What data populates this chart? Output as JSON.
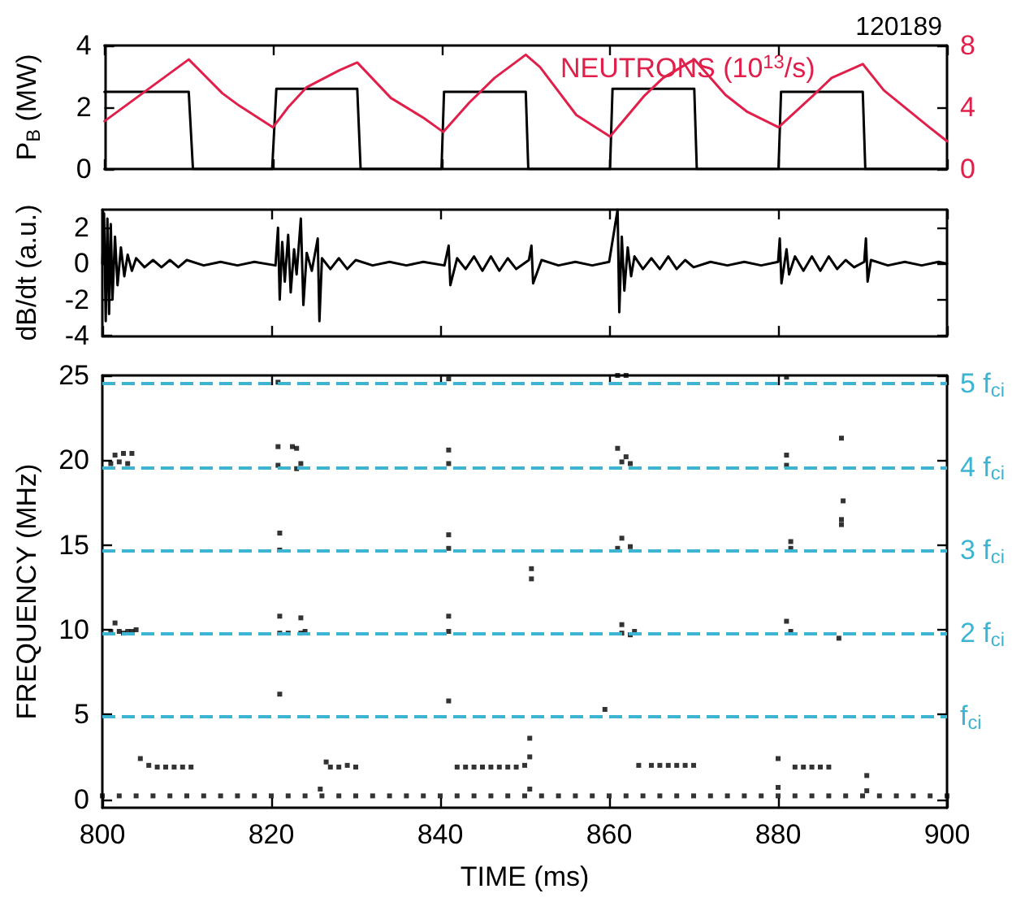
{
  "chart_data": [
    {
      "type": "line",
      "title": "120189",
      "ylabel": "P$_{B}$ (MW)",
      "y2label": "NEUTRONS (10$^{13}$/s)",
      "xlim": [
        800,
        900
      ],
      "xticks": [
        800,
        820,
        840,
        860,
        880,
        900
      ],
      "ylim": [
        0,
        4
      ],
      "yticks": [
        0,
        2,
        4
      ],
      "y2lim": [
        0,
        8
      ],
      "y2ticks": [
        0,
        4,
        8
      ],
      "tick_labels": "y",
      "marker": "none",
      "line_style": "solid",
      "series": [
        {
          "color": "#000000",
          "x": [
            800,
            810,
            810.5,
            819.9,
            820.4,
            830,
            830.4,
            840,
            840.3,
            850,
            850.3,
            860,
            860.3,
            870,
            870.3,
            880,
            880.3,
            890,
            890.3,
            900
          ],
          "values": [
            2.5,
            2.5,
            0,
            0,
            2.6,
            2.6,
            0,
            0,
            2.5,
            2.5,
            0,
            0,
            2.6,
            2.6,
            0,
            0,
            2.5,
            2.5,
            0,
            0
          ]
        },
        {
          "color": "#e0204a",
          "axis": "y2",
          "x": [
            800,
            810,
            814,
            816,
            820,
            821.8,
            824,
            827.9,
            830,
            834,
            837.9,
            840.2,
            843.3,
            846.3,
            850,
            851.7,
            856,
            860,
            864,
            866.3,
            870,
            873.7,
            876.3,
            880,
            884,
            886.3,
            890,
            892.5,
            895.2,
            897.9,
            900
          ],
          "values": [
            3.1,
            7.1,
            4.9,
            4.1,
            2.7,
            4.0,
            5.3,
            6.4,
            6.9,
            4.6,
            3.3,
            2.4,
            4.3,
            5.9,
            7.4,
            6.6,
            3.5,
            2.1,
            4.7,
            5.9,
            7.1,
            4.8,
            3.7,
            2.7,
            4.7,
            5.9,
            6.8,
            5.1,
            3.9,
            2.7,
            1.8
          ]
        }
      ]
    },
    {
      "type": "line",
      "ylabel": "dB/dt (a.u.)",
      "xlim": [
        800,
        900
      ],
      "xticks": [
        800,
        820,
        840,
        860,
        880,
        900
      ],
      "ylim": [
        -4,
        3
      ],
      "yticks": [
        -4,
        -2,
        0,
        2
      ],
      "tick_labels": "y",
      "marker": "none",
      "series": [
        {
          "color": "#000000",
          "x": [
            800,
            800.2,
            800.4,
            800.6,
            800.8,
            801,
            801.2,
            801.5,
            801.8,
            802.2,
            802.6,
            803,
            803.5,
            804,
            805,
            806,
            807,
            808,
            809,
            810,
            812,
            814,
            816,
            818,
            820.5,
            820.8,
            821,
            821.3,
            821.6,
            822,
            822.3,
            822.7,
            823,
            823.5,
            823.8,
            824.2,
            824.8,
            825.5,
            825.7,
            826,
            827,
            828,
            829,
            830,
            832,
            834,
            836,
            838,
            840.5,
            841,
            841.2,
            842,
            843,
            844,
            845,
            846,
            847,
            848,
            849,
            850.5,
            850.8,
            851,
            852,
            854,
            856,
            858,
            860,
            861,
            861.2,
            861.5,
            861.8,
            862.2,
            862.6,
            863,
            864,
            865,
            866,
            867,
            868,
            869,
            870,
            872,
            874,
            876,
            878,
            880,
            880.2,
            880.4,
            881,
            881.3,
            882,
            883,
            884,
            885,
            886,
            887,
            888,
            889,
            890.2,
            890.4,
            890.6,
            891,
            893,
            895,
            897,
            899,
            900
          ],
          "values": [
            0,
            2.8,
            -3.2,
            2.5,
            -2.8,
            2.2,
            -2.0,
            1.5,
            -1.2,
            0.9,
            -0.7,
            0.5,
            -0.4,
            0.3,
            -0.2,
            0.2,
            -0.2,
            0.2,
            -0.2,
            0.2,
            -0.1,
            0.1,
            -0.1,
            0.1,
            -0.1,
            2.0,
            -2.0,
            1.2,
            -1.0,
            1.6,
            -1.6,
            0.8,
            -0.6,
            2.5,
            -2.3,
            0.6,
            -0.4,
            1.4,
            -3.2,
            0.3,
            -0.3,
            0.3,
            -0.3,
            0.2,
            -0.1,
            0.1,
            -0.1,
            0.1,
            -0.1,
            1.0,
            -1.2,
            0.3,
            -0.3,
            0.4,
            -0.4,
            0.4,
            -0.4,
            0.3,
            -0.3,
            0.2,
            1.0,
            -1.1,
            0.2,
            -0.1,
            0.1,
            -0.1,
            0.1,
            3.0,
            -2.7,
            1.5,
            -1.5,
            0.9,
            -0.7,
            0.4,
            -0.3,
            0.3,
            -0.3,
            0.4,
            -0.3,
            0.2,
            -0.2,
            0.1,
            -0.1,
            0.1,
            -0.1,
            0.1,
            1.4,
            -1.1,
            0.8,
            -0.6,
            0.4,
            -0.4,
            0.4,
            -0.4,
            0.4,
            -0.3,
            0.2,
            -0.2,
            0.1,
            1.4,
            -1.0,
            0.2,
            -0.1,
            0.1,
            -0.1,
            0.1,
            0
          ]
        }
      ]
    },
    {
      "type": "scatter",
      "xlabel": "TIME (ms)",
      "ylabel": "FREQUENCY (MHz)",
      "xlim": [
        800,
        900
      ],
      "xticks": [
        800,
        820,
        840,
        860,
        880,
        900
      ],
      "ylim": [
        -0.5,
        25
      ],
      "yticks": [
        0,
        5,
        10,
        15,
        20,
        25
      ],
      "marker": "square",
      "ref_lines": [
        {
          "axis": "y",
          "value": 4.9,
          "label": "f$_{ci}$",
          "color": "#3cb4d2",
          "line_style": "dashed"
        },
        {
          "axis": "y",
          "value": 9.8,
          "label": "2 f$_{ci}$",
          "color": "#3cb4d2",
          "line_style": "dashed"
        },
        {
          "axis": "y",
          "value": 14.7,
          "label": "3 f$_{ci}$",
          "color": "#3cb4d2",
          "line_style": "dashed"
        },
        {
          "axis": "y",
          "value": 19.6,
          "label": "4 f$_{ci}$",
          "color": "#3cb4d2",
          "line_style": "dashed"
        },
        {
          "axis": "y",
          "value": 24.5,
          "label": "5 f$_{ci}$",
          "color": "#3cb4d2",
          "line_style": "dashed"
        }
      ],
      "series": [
        {
          "color": "#000000",
          "x": [
            800,
            802,
            804,
            806,
            808,
            810,
            812,
            814,
            816,
            818,
            820,
            822,
            824,
            826,
            828,
            830,
            832,
            834,
            836,
            838,
            840,
            842,
            844,
            846,
            848,
            850,
            852,
            854,
            856,
            858,
            860,
            862,
            864,
            866,
            868,
            870,
            872,
            874,
            876,
            878,
            880,
            882,
            884,
            886,
            888,
            890,
            892,
            894,
            896,
            898,
            900,
            801,
            801.5,
            802,
            802.5,
            803,
            803.5,
            804,
            801,
            801.5,
            802,
            802.5,
            803,
            803.5,
            804.5,
            805.5,
            806.5,
            807.5,
            808.5,
            809.5,
            810.5,
            820.8,
            820.8,
            820.8,
            821,
            821,
            821,
            821,
            821,
            822,
            822.5,
            823,
            823,
            823.5,
            823.5,
            823.5,
            824,
            825.8,
            826.5,
            827,
            828,
            829,
            830,
            841,
            841,
            841,
            841,
            841,
            841,
            841,
            841,
            842,
            843,
            844,
            845,
            846,
            847,
            848,
            849,
            850,
            850.6,
            850.6,
            850.6,
            850.8,
            850.8,
            859.5,
            861,
            862,
            861,
            862,
            861.5,
            862.5,
            861.5,
            861,
            862.5,
            861.5,
            861.5,
            862.5,
            863,
            863.5,
            865,
            866,
            867,
            868,
            869,
            870,
            880,
            880,
            881,
            881,
            881,
            881.5,
            881.5,
            881,
            881.5,
            882,
            883,
            884,
            885,
            886,
            887.2,
            887.5,
            887.7,
            887.5,
            887.5,
            890.5,
            890.5
          ],
          "values": [
            0.2,
            0.2,
            0.2,
            0.2,
            0.2,
            0.2,
            0.2,
            0.2,
            0.2,
            0.2,
            0.2,
            0.2,
            0.2,
            0.2,
            0.2,
            0.2,
            0.2,
            0.2,
            0.2,
            0.2,
            0.2,
            0.2,
            0.2,
            0.2,
            0.2,
            0.2,
            0.2,
            0.2,
            0.2,
            0.2,
            0.2,
            0.2,
            0.2,
            0.2,
            0.2,
            0.2,
            0.2,
            0.2,
            0.2,
            0.2,
            0.2,
            0.2,
            0.2,
            0.2,
            0.2,
            0.2,
            0.2,
            0.2,
            0.2,
            0.2,
            0.2,
            9.9,
            10.4,
            9.9,
            9.8,
            9.9,
            9.9,
            10.0,
            19.8,
            20.3,
            19.9,
            20.4,
            19.8,
            20.4,
            2.4,
            2.0,
            1.9,
            1.9,
            1.9,
            1.9,
            1.9,
            24.6,
            20.8,
            19.7,
            15.7,
            14.7,
            10.8,
            9.8,
            6.2,
            9.8,
            20.8,
            20.7,
            19.5,
            19.8,
            10.7,
            9.8,
            9.9,
            0.6,
            2.2,
            1.9,
            1.9,
            2.0,
            1.9,
            24.8,
            20.6,
            19.8,
            15.6,
            14.8,
            10.8,
            9.9,
            5.8,
            1.9,
            1.9,
            1.9,
            1.9,
            1.9,
            1.9,
            1.9,
            1.9,
            2.0,
            2.5,
            3.6,
            0.6,
            13.6,
            13.0,
            5.3,
            25.0,
            25.0,
            20.7,
            20.2,
            19.9,
            19.8,
            15.4,
            14.8,
            14.9,
            10.3,
            9.8,
            9.7,
            9.9,
            2.0,
            2.0,
            2.0,
            2.0,
            2.0,
            2.0,
            2.0,
            2.4,
            0.7,
            24.9,
            20.3,
            19.7,
            15.2,
            14.8,
            10.5,
            9.9,
            1.9,
            1.9,
            1.9,
            1.9,
            1.9,
            9.5,
            21.3,
            17.6,
            16.5,
            16.2,
            1.4,
            0.5
          ]
        }
      ]
    }
  ]
}
